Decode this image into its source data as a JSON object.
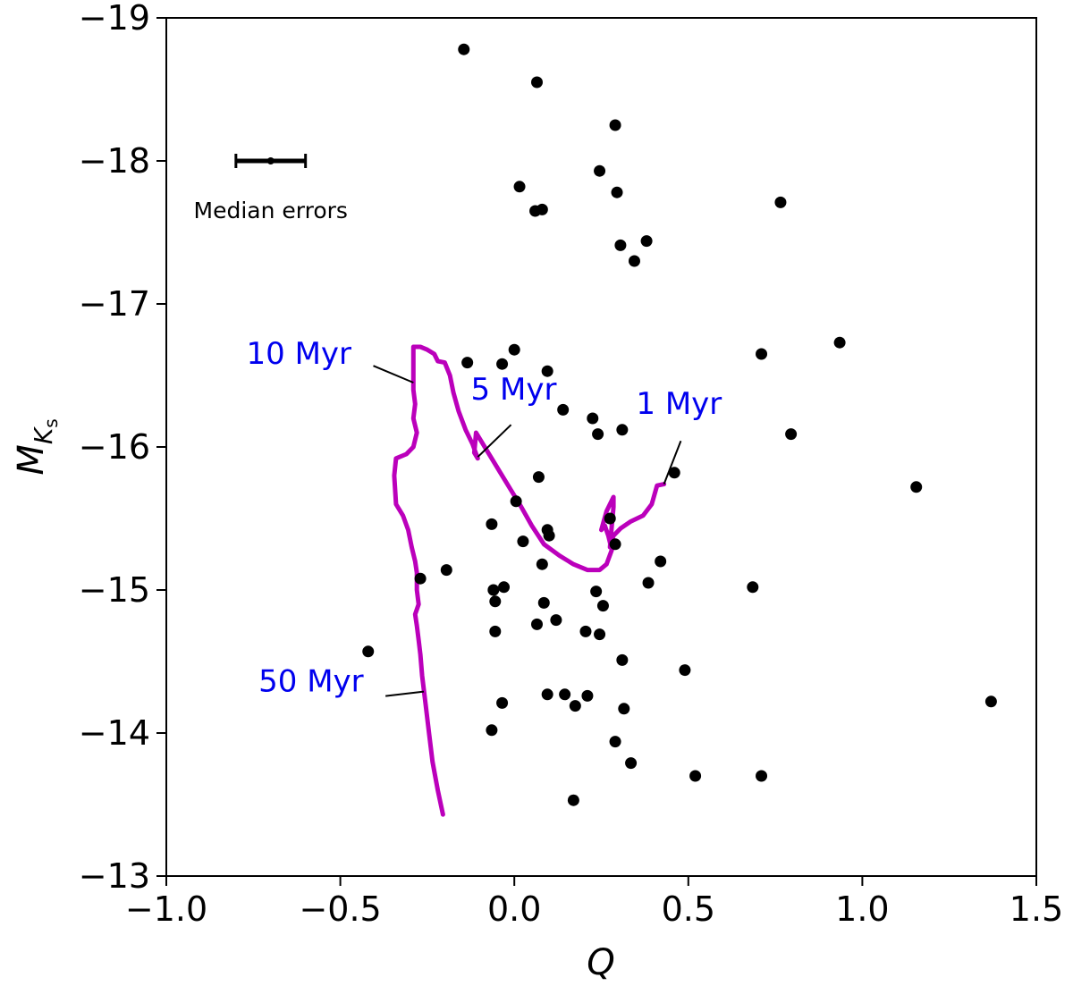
{
  "chart_data": {
    "type": "scatter",
    "xlabel": "Q",
    "ylabel_main": "M",
    "ylabel_sub": "K",
    "ylabel_subsub": "s",
    "xlim": [
      -1.0,
      1.5
    ],
    "ylim": [
      -13,
      -19
    ],
    "y_inverted": true,
    "grid": false,
    "xticks": [
      -1.0,
      -0.5,
      0.0,
      0.5,
      1.0,
      1.5
    ],
    "xtick_labels": [
      "−1.0",
      "−0.5",
      "0.0",
      "0.5",
      "1.0",
      "1.5"
    ],
    "yticks": [
      -19,
      -18,
      -17,
      -16,
      -15,
      -14,
      -13
    ],
    "ytick_labels": [
      "−19",
      "−18",
      "−17",
      "−16",
      "−15",
      "−14",
      "−13"
    ],
    "point_color": "#000000",
    "points": [
      [
        -0.145,
        -18.78
      ],
      [
        0.065,
        -18.55
      ],
      [
        0.29,
        -18.25
      ],
      [
        0.245,
        -17.93
      ],
      [
        0.015,
        -17.82
      ],
      [
        0.295,
        -17.78
      ],
      [
        0.765,
        -17.71
      ],
      [
        0.08,
        -17.66
      ],
      [
        0.06,
        -17.65
      ],
      [
        0.38,
        -17.44
      ],
      [
        0.305,
        -17.41
      ],
      [
        0.345,
        -17.3
      ],
      [
        0.935,
        -16.73
      ],
      [
        -0.135,
        -16.59
      ],
      [
        0.71,
        -16.65
      ],
      [
        -0.035,
        -16.58
      ],
      [
        0.0,
        -16.68
      ],
      [
        0.095,
        -16.53
      ],
      [
        0.14,
        -16.26
      ],
      [
        0.225,
        -16.2
      ],
      [
        0.24,
        -16.09
      ],
      [
        0.31,
        -16.12
      ],
      [
        0.795,
        -16.09
      ],
      [
        0.46,
        -15.82
      ],
      [
        0.07,
        -15.79
      ],
      [
        1.155,
        -15.72
      ],
      [
        0.005,
        -15.62
      ],
      [
        0.275,
        -15.5
      ],
      [
        -0.065,
        -15.46
      ],
      [
        0.095,
        -15.42
      ],
      [
        0.1,
        -15.38
      ],
      [
        0.025,
        -15.34
      ],
      [
        0.29,
        -15.32
      ],
      [
        0.42,
        -15.2
      ],
      [
        0.08,
        -15.18
      ],
      [
        -0.195,
        -15.14
      ],
      [
        -0.27,
        -15.08
      ],
      [
        0.385,
        -15.05
      ],
      [
        0.685,
        -15.02
      ],
      [
        -0.06,
        -15.0
      ],
      [
        -0.03,
        -15.02
      ],
      [
        0.235,
        -14.99
      ],
      [
        -0.055,
        -14.92
      ],
      [
        0.085,
        -14.91
      ],
      [
        0.255,
        -14.89
      ],
      [
        0.12,
        -14.79
      ],
      [
        0.065,
        -14.76
      ],
      [
        -0.055,
        -14.71
      ],
      [
        0.205,
        -14.71
      ],
      [
        0.245,
        -14.69
      ],
      [
        -0.42,
        -14.57
      ],
      [
        0.31,
        -14.51
      ],
      [
        0.49,
        -14.44
      ],
      [
        0.095,
        -14.27
      ],
      [
        0.145,
        -14.27
      ],
      [
        0.21,
        -14.26
      ],
      [
        -0.035,
        -14.21
      ],
      [
        0.175,
        -14.19
      ],
      [
        0.315,
        -14.17
      ],
      [
        1.37,
        -14.22
      ],
      [
        -0.065,
        -14.02
      ],
      [
        0.29,
        -13.94
      ],
      [
        0.335,
        -13.79
      ],
      [
        0.52,
        -13.7
      ],
      [
        0.71,
        -13.7
      ],
      [
        0.17,
        -13.53
      ]
    ],
    "median_errors": {
      "x": -0.7,
      "y": -18.0,
      "x_err": 0.1,
      "y_err": 0.03,
      "label": "Median errors"
    },
    "track": {
      "color": "#bb00bb",
      "points": [
        [
          0.43,
          -15.74
        ],
        [
          0.41,
          -15.73
        ],
        [
          0.395,
          -15.6
        ],
        [
          0.37,
          -15.52
        ],
        [
          0.335,
          -15.48
        ],
        [
          0.305,
          -15.43
        ],
        [
          0.285,
          -15.38
        ],
        [
          0.275,
          -15.3
        ],
        [
          0.28,
          -15.45
        ],
        [
          0.285,
          -15.58
        ],
        [
          0.285,
          -15.65
        ],
        [
          0.265,
          -15.55
        ],
        [
          0.25,
          -15.42
        ],
        [
          0.26,
          -15.45
        ],
        [
          0.27,
          -15.38
        ],
        [
          0.28,
          -15.28
        ],
        [
          0.265,
          -15.18
        ],
        [
          0.245,
          -15.14
        ],
        [
          0.21,
          -15.14
        ],
        [
          0.17,
          -15.18
        ],
        [
          0.13,
          -15.24
        ],
        [
          0.085,
          -15.32
        ],
        [
          0.05,
          -15.45
        ],
        [
          0.02,
          -15.58
        ],
        [
          -0.01,
          -15.7
        ],
        [
          -0.04,
          -15.82
        ],
        [
          -0.075,
          -15.96
        ],
        [
          -0.11,
          -16.1
        ],
        [
          -0.115,
          -15.96
        ],
        [
          -0.105,
          -15.92
        ],
        [
          -0.12,
          -16.02
        ],
        [
          -0.14,
          -16.12
        ],
        [
          -0.16,
          -16.25
        ],
        [
          -0.175,
          -16.38
        ],
        [
          -0.185,
          -16.5
        ],
        [
          -0.2,
          -16.59
        ],
        [
          -0.22,
          -16.6
        ],
        [
          -0.23,
          -16.65
        ],
        [
          -0.25,
          -16.68
        ],
        [
          -0.27,
          -16.7
        ],
        [
          -0.29,
          -16.7
        ],
        [
          -0.29,
          -16.4
        ],
        [
          -0.285,
          -16.3
        ],
        [
          -0.29,
          -16.2
        ],
        [
          -0.28,
          -16.1
        ],
        [
          -0.29,
          -16.0
        ],
        [
          -0.31,
          -15.95
        ],
        [
          -0.34,
          -15.92
        ],
        [
          -0.345,
          -15.8
        ],
        [
          -0.34,
          -15.6
        ],
        [
          -0.32,
          -15.52
        ],
        [
          -0.305,
          -15.42
        ],
        [
          -0.295,
          -15.3
        ],
        [
          -0.285,
          -15.2
        ],
        [
          -0.28,
          -15.12
        ],
        [
          -0.28,
          -15.0
        ],
        [
          -0.275,
          -14.9
        ],
        [
          -0.285,
          -14.83
        ],
        [
          -0.28,
          -14.75
        ],
        [
          -0.275,
          -14.65
        ],
        [
          -0.27,
          -14.55
        ],
        [
          -0.265,
          -14.4
        ],
        [
          -0.255,
          -14.2
        ],
        [
          -0.245,
          -14.0
        ],
        [
          -0.235,
          -13.8
        ],
        [
          -0.22,
          -13.6
        ],
        [
          -0.205,
          -13.43
        ]
      ]
    },
    "annotations": [
      {
        "text": "10 Myr",
        "point": [
          -0.29,
          -16.45
        ],
        "text_pos": [
          -0.77,
          -16.58
        ],
        "anchor": "start"
      },
      {
        "text": "5 Myr",
        "point": [
          -0.105,
          -15.93
        ],
        "text_pos": [
          -0.125,
          -16.33
        ],
        "anchor": "start"
      },
      {
        "text": "1 Myr",
        "point": [
          0.43,
          -15.74
        ],
        "text_pos": [
          0.35,
          -16.23
        ],
        "anchor": "start"
      },
      {
        "text": "50 Myr",
        "point": [
          -0.26,
          -14.29
        ],
        "text_pos": [
          -0.735,
          -14.29
        ],
        "anchor": "start"
      }
    ]
  }
}
